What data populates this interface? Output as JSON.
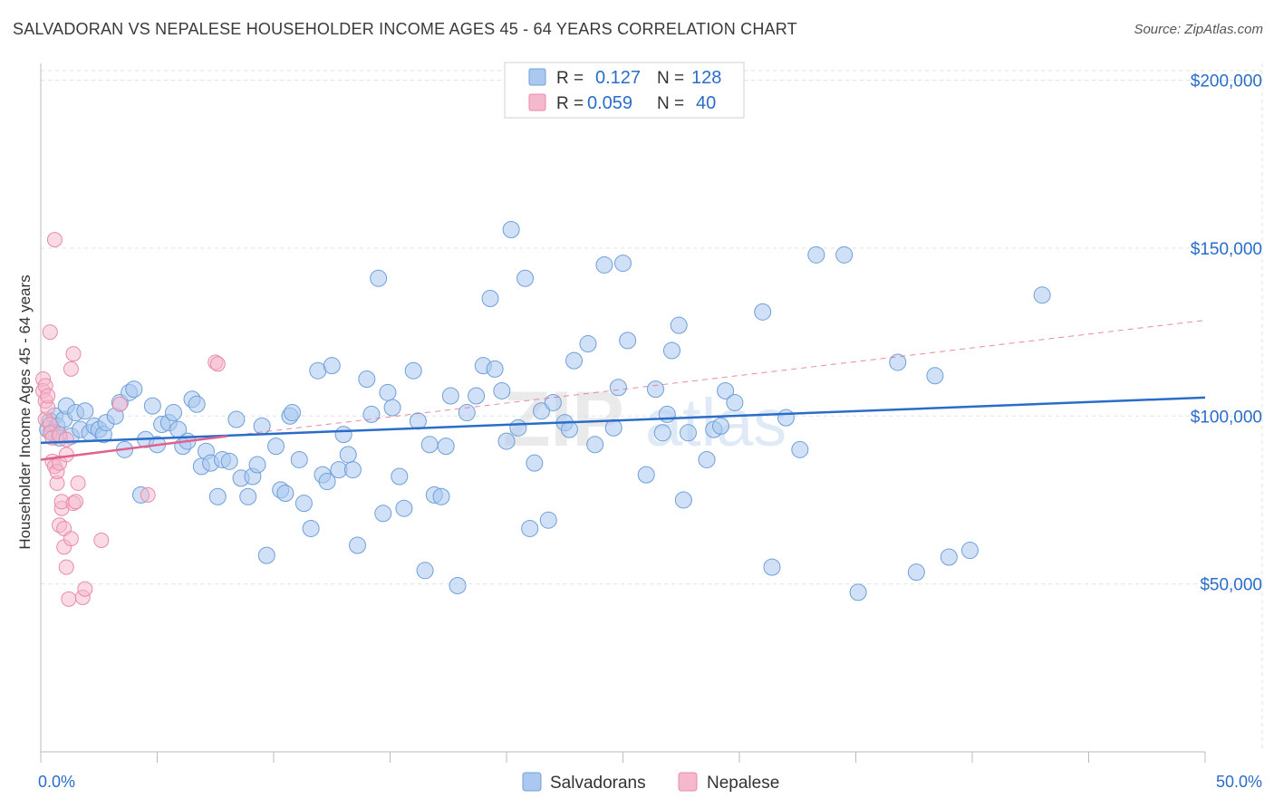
{
  "header": {
    "title": "SALVADORAN VS NEPALESE HOUSEHOLDER INCOME AGES 45 - 64 YEARS CORRELATION CHART",
    "source": "Source: ZipAtlas.com"
  },
  "watermark": {
    "zip": "ZIP",
    "atlas": "atlas"
  },
  "colors": {
    "salvadoran_fill": "#aac8f0",
    "salvadoran_stroke": "#6f9fd8",
    "salvadoran_line": "#2a6dc9",
    "nepalese_fill": "#f6b8cc",
    "nepalese_stroke": "#e98aab",
    "nepalese_line": "#e0608e",
    "axis_text": "#2a6dc9",
    "grid": "#e2e2e2"
  },
  "legend": {
    "rows": [
      {
        "r_label": "R =",
        "r_value": "0.127",
        "n_label": "N =",
        "n_value": "128"
      },
      {
        "r_label": "R =",
        "r_value": "0.059",
        "n_label": "N =",
        "n_value": "40"
      }
    ]
  },
  "chart_data": {
    "type": "scatter",
    "title": "SALVADORAN VS NEPALESE HOUSEHOLDER INCOME AGES 45 - 64 YEARS CORRELATION CHART",
    "xlabel": "",
    "ylabel": "Householder Income Ages 45 - 64 years",
    "xlim": [
      0,
      50
    ],
    "ylim": [
      0,
      205000
    ],
    "x_tick_labels": [
      "0.0%",
      "50.0%"
    ],
    "y_ticks": [
      50000,
      100000,
      150000,
      200000
    ],
    "y_tick_labels": [
      "$50,000",
      "$100,000",
      "$150,000",
      "$200,000"
    ],
    "grid": true,
    "legend_position": "bottom-center",
    "series": [
      {
        "name": "Salvadorans",
        "r": 0.127,
        "n": 128,
        "trend": {
          "x": [
            0,
            50
          ],
          "y": [
            92000,
            105500
          ],
          "style": "solid"
        },
        "points": [
          [
            0.3,
            96000
          ],
          [
            0.4,
            98500
          ],
          [
            0.5,
            95000
          ],
          [
            0.6,
            100000
          ],
          [
            0.7,
            97000
          ],
          [
            0.8,
            93500
          ],
          [
            1.0,
            99000
          ],
          [
            1.1,
            103000
          ],
          [
            1.3,
            94000
          ],
          [
            1.5,
            101000
          ],
          [
            1.7,
            96000
          ],
          [
            1.9,
            101500
          ],
          [
            2.1,
            95000
          ],
          [
            2.3,
            97000
          ],
          [
            2.5,
            96000
          ],
          [
            2.7,
            94500
          ],
          [
            2.8,
            98000
          ],
          [
            3.2,
            100000
          ],
          [
            3.4,
            104000
          ],
          [
            3.6,
            90000
          ],
          [
            3.8,
            107000
          ],
          [
            4.0,
            108000
          ],
          [
            4.3,
            76500
          ],
          [
            4.5,
            93000
          ],
          [
            4.8,
            103000
          ],
          [
            5.0,
            91500
          ],
          [
            5.2,
            97500
          ],
          [
            5.5,
            98000
          ],
          [
            5.7,
            101000
          ],
          [
            5.9,
            96000
          ],
          [
            6.1,
            91000
          ],
          [
            6.3,
            92500
          ],
          [
            6.5,
            105000
          ],
          [
            6.7,
            103500
          ],
          [
            6.9,
            85000
          ],
          [
            7.1,
            89500
          ],
          [
            7.3,
            86000
          ],
          [
            7.6,
            76000
          ],
          [
            7.8,
            87000
          ],
          [
            8.1,
            86500
          ],
          [
            8.4,
            99000
          ],
          [
            8.6,
            81500
          ],
          [
            8.9,
            76000
          ],
          [
            9.1,
            82000
          ],
          [
            9.3,
            85500
          ],
          [
            9.5,
            97000
          ],
          [
            9.7,
            58500
          ],
          [
            10.1,
            91000
          ],
          [
            10.3,
            78000
          ],
          [
            10.5,
            77000
          ],
          [
            10.7,
            100000
          ],
          [
            10.8,
            101000
          ],
          [
            11.1,
            87000
          ],
          [
            11.3,
            74000
          ],
          [
            11.6,
            66500
          ],
          [
            11.9,
            113500
          ],
          [
            12.1,
            82500
          ],
          [
            12.3,
            80500
          ],
          [
            12.5,
            115000
          ],
          [
            12.8,
            84000
          ],
          [
            13.0,
            94500
          ],
          [
            13.2,
            88500
          ],
          [
            13.4,
            84000
          ],
          [
            13.6,
            61500
          ],
          [
            14.0,
            111000
          ],
          [
            14.2,
            100500
          ],
          [
            14.5,
            141000
          ],
          [
            14.7,
            71000
          ],
          [
            14.9,
            107000
          ],
          [
            15.1,
            102500
          ],
          [
            15.4,
            82000
          ],
          [
            15.6,
            72500
          ],
          [
            16.0,
            113500
          ],
          [
            16.2,
            98500
          ],
          [
            16.5,
            54000
          ],
          [
            16.7,
            91500
          ],
          [
            16.9,
            76500
          ],
          [
            17.2,
            76000
          ],
          [
            17.4,
            91000
          ],
          [
            17.6,
            106000
          ],
          [
            17.9,
            49500
          ],
          [
            18.3,
            101000
          ],
          [
            18.7,
            106000
          ],
          [
            19.0,
            115000
          ],
          [
            19.3,
            135000
          ],
          [
            19.5,
            114000
          ],
          [
            19.8,
            107500
          ],
          [
            20.0,
            92500
          ],
          [
            20.2,
            155500
          ],
          [
            20.5,
            96500
          ],
          [
            20.8,
            141000
          ],
          [
            21.0,
            66500
          ],
          [
            21.2,
            86000
          ],
          [
            21.5,
            101500
          ],
          [
            21.8,
            69000
          ],
          [
            22.0,
            104000
          ],
          [
            22.5,
            98000
          ],
          [
            22.7,
            96000
          ],
          [
            22.9,
            116500
          ],
          [
            23.5,
            121500
          ],
          [
            23.8,
            91500
          ],
          [
            24.2,
            145000
          ],
          [
            24.6,
            96500
          ],
          [
            24.8,
            108500
          ],
          [
            25.0,
            145500
          ],
          [
            25.2,
            122500
          ],
          [
            26.0,
            82500
          ],
          [
            26.4,
            108000
          ],
          [
            26.9,
            100500
          ],
          [
            27.1,
            119500
          ],
          [
            27.4,
            127000
          ],
          [
            27.6,
            75000
          ],
          [
            27.8,
            95000
          ],
          [
            28.6,
            87000
          ],
          [
            28.9,
            96000
          ],
          [
            29.2,
            97000
          ],
          [
            29.4,
            107500
          ],
          [
            29.8,
            104000
          ],
          [
            31.0,
            131000
          ],
          [
            31.4,
            55000
          ],
          [
            32.0,
            99500
          ],
          [
            32.6,
            90000
          ],
          [
            33.3,
            148000
          ],
          [
            34.5,
            148000
          ],
          [
            35.1,
            47500
          ],
          [
            36.8,
            116000
          ],
          [
            37.6,
            53500
          ],
          [
            38.4,
            112000
          ],
          [
            39.0,
            58000
          ],
          [
            39.9,
            60000
          ],
          [
            43.0,
            136000
          ],
          [
            26.7,
            95000
          ]
        ]
      },
      {
        "name": "Nepalese",
        "r": 0.059,
        "n": 40,
        "trend": {
          "x": [
            0,
            8
          ],
          "y": [
            87000,
            94000
          ],
          "style": "solid"
        },
        "trend_extended": {
          "x": [
            8,
            50
          ],
          "y": [
            94000,
            128500
          ],
          "style": "dashed"
        },
        "points": [
          [
            0.1,
            111000
          ],
          [
            0.1,
            107500
          ],
          [
            0.2,
            109000
          ],
          [
            0.2,
            104500
          ],
          [
            0.2,
            99000
          ],
          [
            0.3,
            102500
          ],
          [
            0.3,
            106000
          ],
          [
            0.4,
            125000
          ],
          [
            0.4,
            97500
          ],
          [
            0.4,
            95000
          ],
          [
            0.5,
            86500
          ],
          [
            0.5,
            93500
          ],
          [
            0.6,
            152500
          ],
          [
            0.6,
            85000
          ],
          [
            0.7,
            80000
          ],
          [
            0.7,
            83500
          ],
          [
            0.8,
            67500
          ],
          [
            0.8,
            94500
          ],
          [
            0.8,
            86000
          ],
          [
            0.9,
            72500
          ],
          [
            0.9,
            74500
          ],
          [
            1.0,
            61000
          ],
          [
            1.0,
            66500
          ],
          [
            1.1,
            55000
          ],
          [
            1.1,
            93000
          ],
          [
            1.1,
            88500
          ],
          [
            1.2,
            45500
          ],
          [
            1.3,
            63500
          ],
          [
            1.3,
            114000
          ],
          [
            1.4,
            118500
          ],
          [
            1.4,
            74000
          ],
          [
            1.5,
            74500
          ],
          [
            1.6,
            80000
          ],
          [
            1.8,
            46000
          ],
          [
            1.9,
            48500
          ],
          [
            2.6,
            63000
          ],
          [
            3.4,
            103500
          ],
          [
            4.6,
            76500
          ],
          [
            7.5,
            116000
          ],
          [
            7.6,
            115500
          ]
        ]
      }
    ]
  },
  "bottom_legend": {
    "items": [
      "Salvadorans",
      "Nepalese"
    ]
  }
}
